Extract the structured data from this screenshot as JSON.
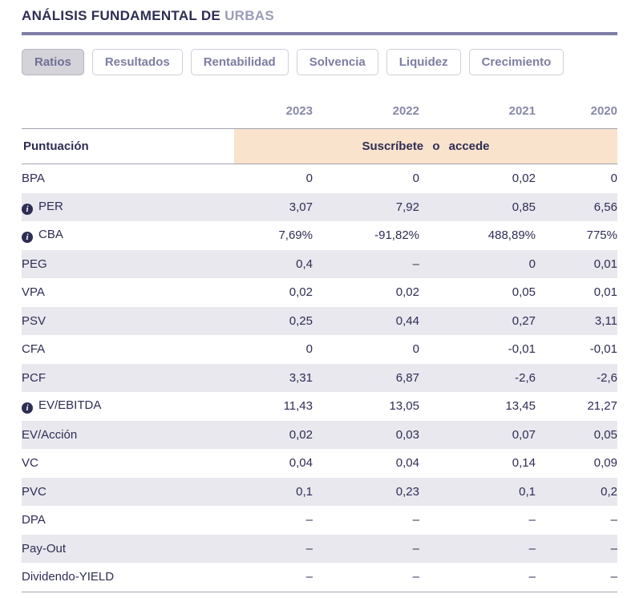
{
  "header": {
    "title": "ANÁLISIS FUNDAMENTAL DE",
    "ticker": "URBAS"
  },
  "tabs": [
    {
      "label": "Ratios",
      "active": true
    },
    {
      "label": "Resultados",
      "active": false
    },
    {
      "label": "Rentabilidad",
      "active": false
    },
    {
      "label": "Solvencia",
      "active": false
    },
    {
      "label": "Liquidez",
      "active": false
    },
    {
      "label": "Crecimiento",
      "active": false
    }
  ],
  "table": {
    "years": [
      "2023",
      "2022",
      "2021",
      "2020"
    ],
    "score_row": {
      "label": "Puntuación",
      "banner": "Suscríbete o accede"
    },
    "rows": [
      {
        "label": "BPA",
        "info": false,
        "values": [
          "0",
          "0",
          "0,02",
          "0"
        ]
      },
      {
        "label": "PER",
        "info": true,
        "values": [
          "3,07",
          "7,92",
          "0,85",
          "6,56"
        ]
      },
      {
        "label": "CBA",
        "info": true,
        "values": [
          "7,69%",
          "-91,82%",
          "488,89%",
          "775%"
        ]
      },
      {
        "label": "PEG",
        "info": false,
        "values": [
          "0,4",
          "–",
          "0",
          "0,01"
        ]
      },
      {
        "label": "VPA",
        "info": false,
        "values": [
          "0,02",
          "0,02",
          "0,05",
          "0,01"
        ]
      },
      {
        "label": "PSV",
        "info": false,
        "values": [
          "0,25",
          "0,44",
          "0,27",
          "3,11"
        ]
      },
      {
        "label": "CFA",
        "info": false,
        "values": [
          "0",
          "0",
          "-0,01",
          "-0,01"
        ]
      },
      {
        "label": "PCF",
        "info": false,
        "values": [
          "3,31",
          "6,87",
          "-2,6",
          "-2,6"
        ]
      },
      {
        "label": "EV/EBITDA",
        "info": true,
        "values": [
          "11,43",
          "13,05",
          "13,45",
          "21,27"
        ]
      },
      {
        "label": "EV/Acción",
        "info": false,
        "values": [
          "0,02",
          "0,03",
          "0,07",
          "0,05"
        ]
      },
      {
        "label": "VC",
        "info": false,
        "values": [
          "0,04",
          "0,04",
          "0,14",
          "0,09"
        ]
      },
      {
        "label": "PVC",
        "info": false,
        "values": [
          "0,1",
          "0,23",
          "0,1",
          "0,2"
        ]
      },
      {
        "label": "DPA",
        "info": false,
        "values": [
          "–",
          "–",
          "–",
          "–"
        ]
      },
      {
        "label": "Pay-Out",
        "info": false,
        "values": [
          "–",
          "–",
          "–",
          "–"
        ]
      },
      {
        "label": "Dividendo-YIELD",
        "info": false,
        "values": [
          "–",
          "–",
          "–",
          "–"
        ]
      }
    ]
  },
  "icons": {
    "info": "info-icon",
    "info_glyph": "i"
  },
  "colors": {
    "navy_text": "#2e2d54",
    "ticker_accent": "#9b9bba",
    "divider": "#7e7ea6",
    "year_header": "#8888a8",
    "row_stripe": "#e8e8ee",
    "banner_peach": "#fae3cd",
    "tab_text": "#7d7da2",
    "tab_border": "#cfcfda",
    "active_tab_bg": "#d3d3d9"
  }
}
